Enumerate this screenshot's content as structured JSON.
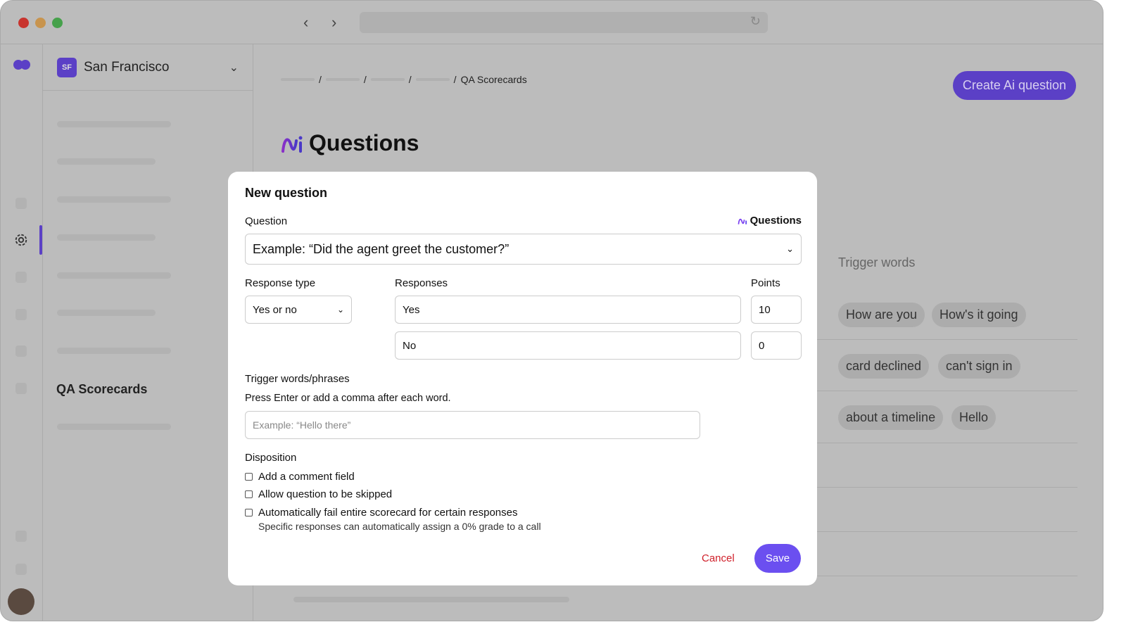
{
  "colors": {
    "accent": "#6b4ff0",
    "cancel": "#d0202a"
  },
  "workspace": {
    "initials": "SF",
    "name": "San Francisco"
  },
  "sidebar": {
    "active_item": "QA Scorecards"
  },
  "breadcrumb": {
    "current": "QA Scorecards"
  },
  "header": {
    "create_button": "Create Ai question",
    "title": "Questions"
  },
  "background": {
    "trigger_header": "Trigger words",
    "pills": [
      "How are you",
      "How's it going",
      "card declined",
      "can't sign in",
      "about a timeline",
      "Hello"
    ]
  },
  "modal": {
    "title": "New question",
    "question_label": "Question",
    "questions_link": "Questions",
    "question_placeholder": "Example: “Did the agent greet the customer?”",
    "response_type_label": "Response type",
    "response_type_value": "Yes or no",
    "responses_label": "Responses",
    "points_label": "Points",
    "responses": [
      {
        "text": "Yes",
        "points": "10"
      },
      {
        "text": "No",
        "points": "0"
      }
    ],
    "trigger_label": "Trigger words/phrases",
    "trigger_help": "Press Enter or add a comma after each word.",
    "trigger_placeholder": "Example: “Hello there”",
    "disposition_label": "Disposition",
    "options": [
      "Add a comment field",
      "Allow question to be skipped",
      "Automatically fail entire scorecard for certain responses"
    ],
    "option_help": "Specific responses can automatically assign a 0% grade to a call",
    "cancel": "Cancel",
    "save": "Save"
  }
}
